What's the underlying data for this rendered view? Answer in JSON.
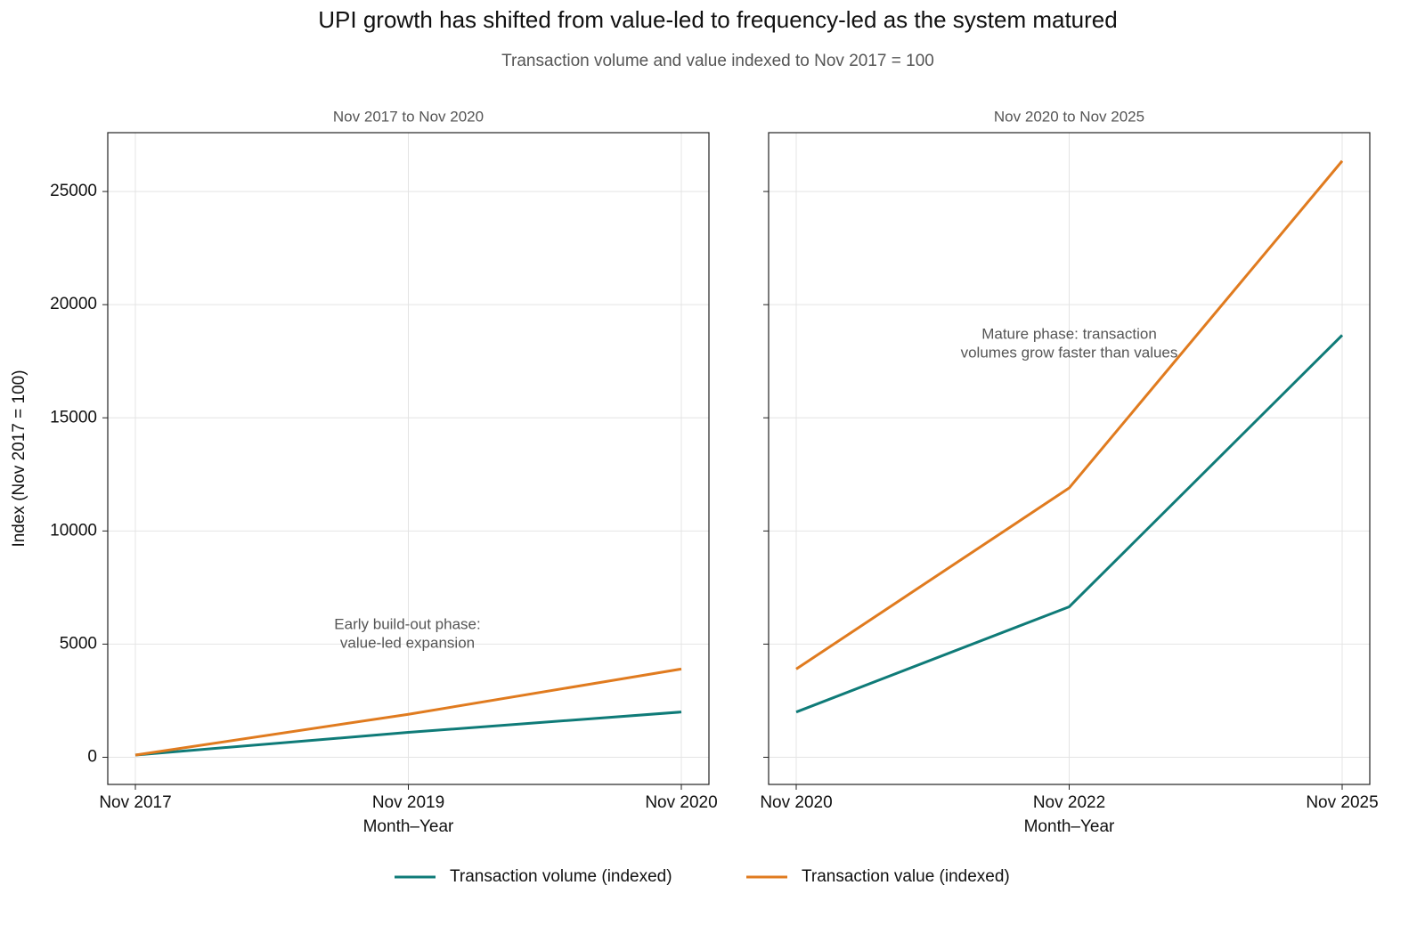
{
  "title": "UPI growth has shifted from value-led to frequency-led as the system matured",
  "subtitle": "Transaction volume and value indexed to Nov 2017 = 100",
  "ylabel": "Index (Nov 2017 = 100)",
  "chart_data": [
    {
      "type": "line",
      "title": "Nov 2017 to Nov 2020",
      "xlabel": "Month–Year",
      "categories": [
        "Nov 2017",
        "Nov 2019",
        "Nov 2020"
      ],
      "series": [
        {
          "name": "Transaction volume (indexed)",
          "color": "#0f7b78",
          "values": [
            100,
            1100,
            2000
          ]
        },
        {
          "name": "Transaction value (indexed)",
          "color": "#e07b1f",
          "values": [
            100,
            1900,
            3900
          ]
        }
      ],
      "ylim": [
        -1200,
        27600
      ],
      "yticks": [
        0,
        5000,
        10000,
        15000,
        20000,
        25000
      ],
      "grid": true,
      "annotation": [
        "Early build-out phase:",
        "value-led expansion"
      ]
    },
    {
      "type": "line",
      "title": "Nov 2020 to Nov 2025",
      "xlabel": "Month–Year",
      "categories": [
        "Nov 2020",
        "Nov 2022",
        "Nov 2025"
      ],
      "series": [
        {
          "name": "Transaction volume (indexed)",
          "color": "#0f7b78",
          "values": [
            2000,
            6650,
            18650
          ]
        },
        {
          "name": "Transaction value (indexed)",
          "color": "#e07b1f",
          "values": [
            3900,
            11900,
            26350
          ]
        }
      ],
      "ylim": [
        -1200,
        27600
      ],
      "yticks": [
        0,
        5000,
        10000,
        15000,
        20000,
        25000
      ],
      "grid": true,
      "annotation": [
        "Mature phase: transaction",
        "volumes grow faster than values"
      ]
    }
  ]
}
